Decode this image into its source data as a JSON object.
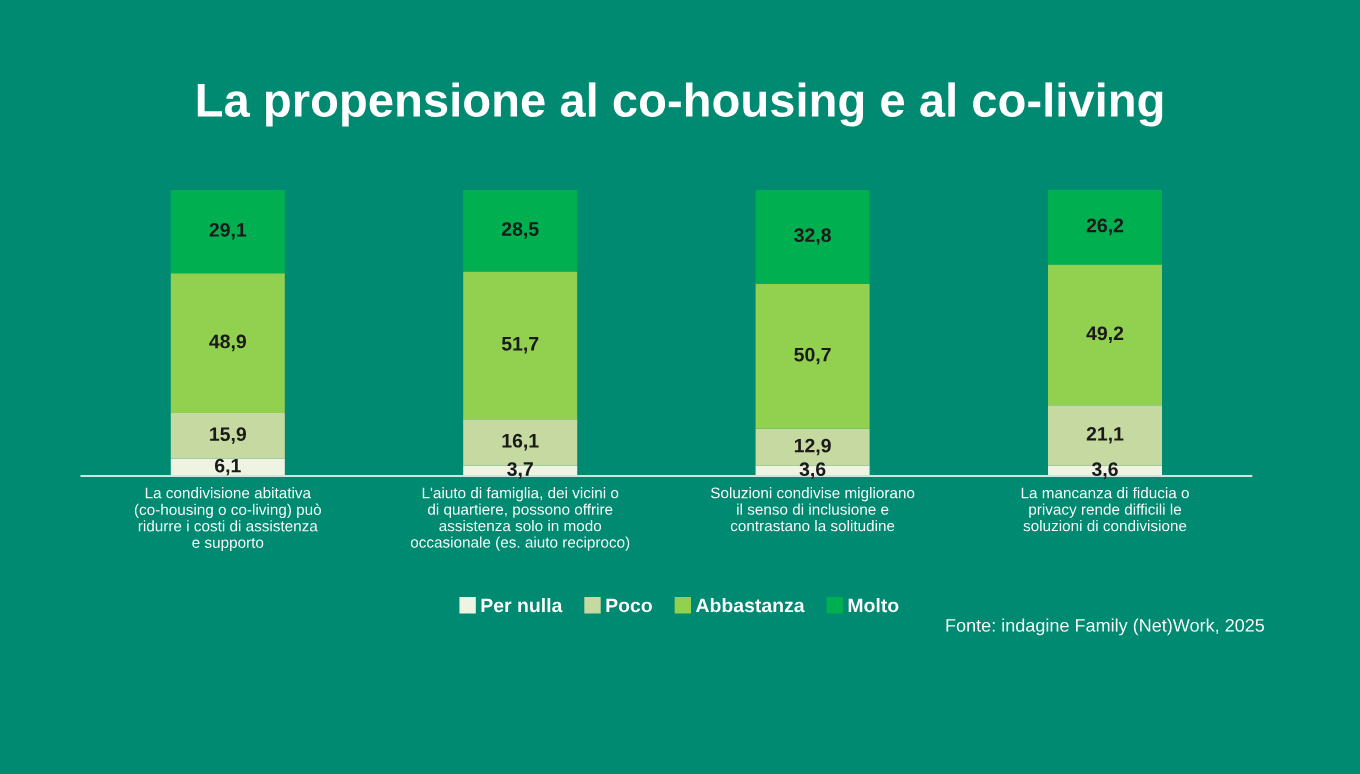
{
  "chart_data": {
    "type": "bar",
    "stacked": true,
    "title": "La propensione al co-housing e al co-living",
    "categories": [
      "La condivisione abitativa\n(co-housing o co-living) può\nridurre i costi di assistenza\ne supporto",
      "L'aiuto di famiglia, dei vicini o\ndi quartiere, possono offrire\nassistenza solo in modo\noccasionale (es. aiuto reciproco)",
      "Soluzioni condivise migliorano\nil senso di inclusione e\ncontrastano la solitudine",
      "La mancanza di fiducia o\nprivacy rende difficili le\nsoluzioni di condivisione"
    ],
    "series": [
      {
        "name": "Per nulla",
        "color": "#eef3e2",
        "values": [
          6.1,
          3.7,
          3.6,
          3.6
        ],
        "value_labels": [
          "6,1",
          "3,7",
          "3,6",
          "3,6"
        ]
      },
      {
        "name": "Poco",
        "color": "#c6d9a0",
        "values": [
          15.9,
          16.1,
          12.9,
          21.1
        ],
        "value_labels": [
          "15,9",
          "16,1",
          "12,9",
          "21,1"
        ]
      },
      {
        "name": "Abbastanza",
        "color": "#92d050",
        "values": [
          48.9,
          51.7,
          50.7,
          49.2
        ],
        "value_labels": [
          "48,9",
          "51,7",
          "50,7",
          "49,2"
        ]
      },
      {
        "name": "Molto",
        "color": "#00b050",
        "values": [
          29.1,
          28.5,
          32.8,
          26.2
        ],
        "value_labels": [
          "29,1",
          "28,5",
          "32,8",
          "26,2"
        ]
      }
    ],
    "legend": "bottom",
    "tick_labels": "x",
    "annotations": [
      "Fonte: indagine Family (Net)Work, 2025"
    ]
  }
}
